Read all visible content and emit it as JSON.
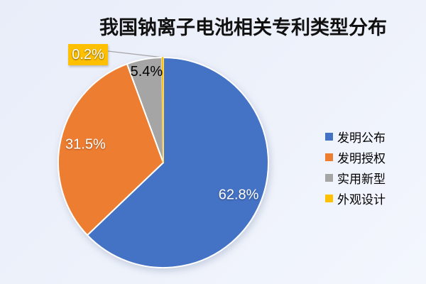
{
  "chart_data": {
    "type": "pie",
    "title": "我国钠离子电池相关专利类型分布",
    "legend_position": "right",
    "start_angle_deg": 0,
    "direction": "clockwise",
    "categories": [
      "发明公布",
      "发明授权",
      "实用新型",
      "外观设计"
    ],
    "values": [
      62.8,
      31.5,
      5.4,
      0.2
    ],
    "slices": [
      {
        "label": "发明公布",
        "value": 62.8,
        "display": "62.8%",
        "color": "#4472C4",
        "label_color": "#FFFFFF",
        "callout": false
      },
      {
        "label": "发明授权",
        "value": 31.5,
        "display": "31.5%",
        "color": "#ED7D31",
        "label_color": "#FFFFFF",
        "callout": false
      },
      {
        "label": "实用新型",
        "value": 5.4,
        "display": "5.4%",
        "color": "#A5A5A5",
        "label_color": "#000000",
        "callout": false
      },
      {
        "label": "外观设计",
        "value": 0.2,
        "display": "0.2%",
        "color": "#FFC000",
        "label_color": "#FFFFFF",
        "callout": true
      }
    ],
    "leader_line_color": "#A6A6A6"
  },
  "background": {
    "gradient_from": "#E9EDF9",
    "gradient_to": "#F3F6FD"
  }
}
